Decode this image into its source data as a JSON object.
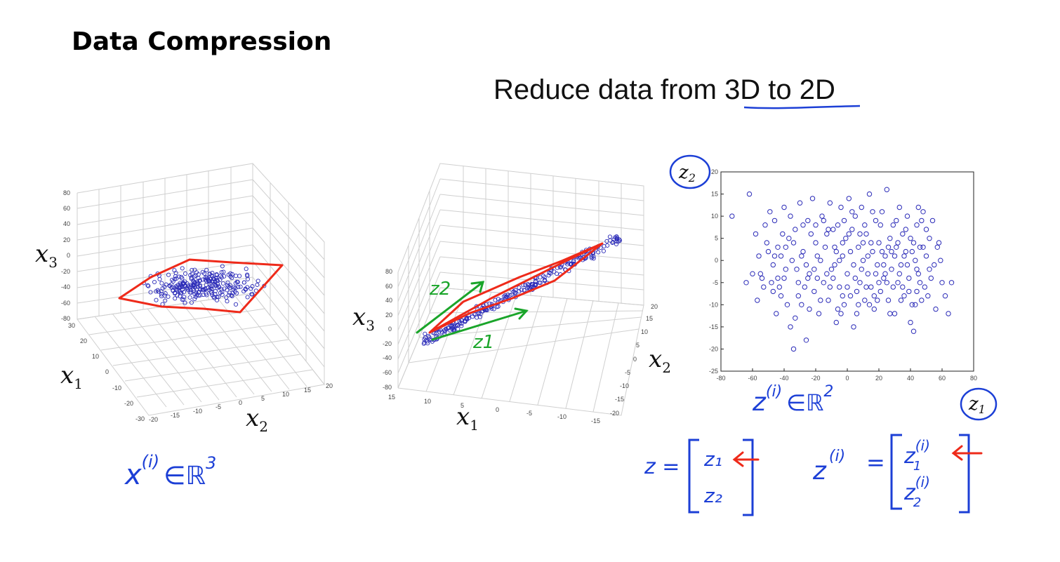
{
  "slide": {
    "title": "Data Compression",
    "subtitle_prefix": "Reduce data from ",
    "subtitle_emph": "3D to 2D"
  },
  "plot3d_left": {
    "z_ticks": [
      "80",
      "60",
      "40",
      "20",
      "0",
      "-20",
      "-40",
      "-60",
      "-80"
    ],
    "x1_ticks": [
      "30",
      "20",
      "10",
      "0",
      "-10",
      "-20",
      "-30"
    ],
    "x2_ticks": [
      "-20",
      "-15",
      "-10",
      "-5",
      "0",
      "5",
      "10",
      "15",
      "20"
    ],
    "xlabel": "x",
    "xlabel_sub": "2",
    "ylabel": "x",
    "ylabel_sub": "1",
    "zlabel": "x",
    "zlabel_sub": "3"
  },
  "plot3d_mid": {
    "z_ticks": [
      "80",
      "60",
      "40",
      "20",
      "0",
      "-20",
      "-40",
      "-60",
      "-80"
    ],
    "x1_ticks": [
      "15",
      "10",
      "5",
      "0",
      "-5",
      "-10",
      "-15"
    ],
    "x2_ticks": [
      "20",
      "15",
      "10",
      "5",
      "0",
      "-5",
      "-10",
      "-15",
      "-20"
    ],
    "xlabel": "x",
    "xlabel_sub": "1",
    "ylabel": "x",
    "ylabel_sub": "2",
    "zlabel": "x",
    "zlabel_sub": "3",
    "arrow_labels": [
      "z2",
      "z1"
    ]
  },
  "chart_data": {
    "type": "scatter",
    "title": "",
    "xlabel": "z1",
    "ylabel": "z2",
    "xlim": [
      -80,
      80
    ],
    "ylim": [
      -25,
      20
    ],
    "x_ticks": [
      "-80",
      "-60",
      "-40",
      "-20",
      "0",
      "20",
      "40",
      "60",
      "80"
    ],
    "y_ticks": [
      "20",
      "15",
      "10",
      "5",
      "0",
      "-5",
      "-10",
      "-15",
      "-20",
      "-25"
    ],
    "grid": false,
    "marker": "circle",
    "marker_color": "#2b2bb8",
    "points": [
      [
        -73,
        10
      ],
      [
        -62,
        15
      ],
      [
        -58,
        6
      ],
      [
        -55,
        -3
      ],
      [
        -52,
        8
      ],
      [
        -50,
        2
      ],
      [
        -48,
        -5
      ],
      [
        -46,
        9
      ],
      [
        -45,
        -12
      ],
      [
        -44,
        3
      ],
      [
        -42,
        -8
      ],
      [
        -40,
        12
      ],
      [
        -39,
        -2
      ],
      [
        -37,
        5
      ],
      [
        -36,
        -15
      ],
      [
        -35,
        0
      ],
      [
        -34,
        -20
      ],
      [
        -33,
        7
      ],
      [
        -31,
        -5
      ],
      [
        -30,
        13
      ],
      [
        -29,
        -10
      ],
      [
        -28,
        2
      ],
      [
        -26,
        -18
      ],
      [
        -25,
        9
      ],
      [
        -24,
        -3
      ],
      [
        -22,
        14
      ],
      [
        -21,
        -7
      ],
      [
        -20,
        4
      ],
      [
        -18,
        -12
      ],
      [
        -17,
        0
      ],
      [
        -16,
        10
      ],
      [
        -15,
        -5
      ],
      [
        -13,
        6
      ],
      [
        -12,
        -9
      ],
      [
        -11,
        13
      ],
      [
        -10,
        -2
      ],
      [
        -8,
        3
      ],
      [
        -7,
        -14
      ],
      [
        -6,
        8
      ],
      [
        -5,
        -6
      ],
      [
        -4,
        12
      ],
      [
        -3,
        1
      ],
      [
        -2,
        -10
      ],
      [
        -1,
        5
      ],
      [
        0,
        -3
      ],
      [
        1,
        14
      ],
      [
        2,
        -8
      ],
      [
        3,
        7
      ],
      [
        4,
        -1
      ],
      [
        5,
        10
      ],
      [
        6,
        -12
      ],
      [
        7,
        3
      ],
      [
        8,
        -5
      ],
      [
        9,
        12
      ],
      [
        10,
        0
      ],
      [
        11,
        -9
      ],
      [
        12,
        6
      ],
      [
        13,
        -3
      ],
      [
        14,
        15
      ],
      [
        15,
        -6
      ],
      [
        16,
        2
      ],
      [
        17,
        -11
      ],
      [
        18,
        9
      ],
      [
        19,
        -1
      ],
      [
        20,
        4
      ],
      [
        21,
        -7
      ],
      [
        22,
        11
      ],
      [
        23,
        -4
      ],
      [
        24,
        1
      ],
      [
        25,
        16
      ],
      [
        26,
        -9
      ],
      [
        27,
        5
      ],
      [
        28,
        -2
      ],
      [
        29,
        8
      ],
      [
        30,
        -12
      ],
      [
        31,
        3
      ],
      [
        32,
        -5
      ],
      [
        33,
        12
      ],
      [
        34,
        -1
      ],
      [
        35,
        6
      ],
      [
        36,
        -8
      ],
      [
        37,
        2
      ],
      [
        38,
        10
      ],
      [
        39,
        -4
      ],
      [
        40,
        5
      ],
      [
        41,
        -10
      ],
      [
        42,
        -16
      ],
      [
        43,
        0
      ],
      [
        44,
        8
      ],
      [
        45,
        -3
      ],
      [
        46,
        3
      ],
      [
        47,
        -9
      ],
      [
        48,
        11
      ],
      [
        49,
        -6
      ],
      [
        50,
        1
      ],
      [
        52,
        -2
      ],
      [
        54,
        9
      ],
      [
        56,
        -11
      ],
      [
        58,
        4
      ],
      [
        60,
        -5
      ],
      [
        62,
        -8
      ],
      [
        64,
        -12
      ],
      [
        66,
        -5
      ],
      [
        -60,
        -3
      ],
      [
        -56,
        1
      ],
      [
        -53,
        -6
      ],
      [
        -49,
        11
      ],
      [
        -47,
        -1
      ],
      [
        -43,
        -6
      ],
      [
        -41,
        6
      ],
      [
        -38,
        -10
      ],
      [
        -32,
        -2
      ],
      [
        -27,
        -6
      ],
      [
        -23,
        6
      ],
      [
        -19,
        -4
      ],
      [
        -14,
        3
      ],
      [
        -9,
        -4
      ],
      [
        -6,
        -11
      ],
      [
        -2,
        9
      ],
      [
        2,
        2
      ],
      [
        5,
        -4
      ],
      [
        8,
        6
      ],
      [
        12,
        -6
      ],
      [
        15,
        4
      ],
      [
        18,
        -3
      ],
      [
        22,
        2
      ],
      [
        26,
        3
      ],
      [
        29,
        -6
      ],
      [
        33,
        -3
      ],
      [
        37,
        7
      ],
      [
        41,
        2
      ],
      [
        44,
        -7
      ],
      [
        48,
        3
      ],
      [
        51,
        -8
      ],
      [
        55,
        -1
      ],
      [
        59,
        0
      ],
      [
        -64,
        -5
      ],
      [
        -57,
        -9
      ],
      [
        -51,
        4
      ],
      [
        -44,
        -4
      ],
      [
        -39,
        3
      ],
      [
        -33,
        -13
      ],
      [
        -28,
        8
      ],
      [
        -24,
        -11
      ],
      [
        -19,
        1
      ],
      [
        -15,
        9
      ],
      [
        -11,
        -6
      ],
      [
        -7,
        2
      ],
      [
        -3,
        -8
      ],
      [
        1,
        6
      ],
      [
        4,
        -15
      ],
      [
        9,
        -2
      ],
      [
        13,
        1
      ],
      [
        17,
        -8
      ],
      [
        21,
        8
      ],
      [
        25,
        -5
      ],
      [
        30,
        1
      ],
      [
        34,
        -9
      ],
      [
        38,
        -1
      ],
      [
        42,
        4
      ],
      [
        46,
        -5
      ],
      [
        50,
        7
      ],
      [
        -47,
        -7
      ],
      [
        -36,
        10
      ],
      [
        -26,
        -1
      ],
      [
        -17,
        -9
      ],
      [
        -8,
        -1
      ],
      [
        -3,
        4
      ],
      [
        3,
        11
      ],
      [
        11,
        8
      ],
      [
        19,
        -9
      ],
      [
        27,
        -12
      ],
      [
        35,
        -6
      ],
      [
        43,
        -10
      ],
      [
        47,
        9
      ],
      [
        53,
        -4
      ],
      [
        57,
        3
      ],
      [
        -54,
        -4
      ],
      [
        -46,
        1
      ],
      [
        -34,
        4
      ],
      [
        -21,
        -2
      ],
      [
        -12,
        7
      ],
      [
        -4,
        -12
      ],
      [
        6,
        -7
      ],
      [
        14,
        -10
      ],
      [
        23,
        -1
      ],
      [
        31,
        9
      ],
      [
        39,
        -7
      ],
      [
        45,
        12
      ],
      [
        52,
        5
      ],
      [
        -40,
        -4
      ],
      [
        -29,
        1
      ],
      [
        -20,
        8
      ],
      [
        -9,
        7
      ],
      [
        0,
        -6
      ],
      [
        7,
        -10
      ],
      [
        16,
        11
      ],
      [
        24,
        -3
      ],
      [
        32,
        4
      ],
      [
        40,
        -14
      ],
      [
        -42,
        1
      ],
      [
        -31,
        -8
      ],
      [
        -13,
        -3
      ],
      [
        10,
        4
      ],
      [
        20,
        -5
      ],
      [
        28,
        2
      ],
      [
        36,
        1
      ],
      [
        44,
        -2
      ],
      [
        -25,
        -4
      ],
      [
        -5,
        0
      ]
    ]
  },
  "annotations": {
    "x_vec": "x",
    "x_sup": "(i)",
    "in_R3": "∈ℝ",
    "R3_exp": "3",
    "z_vec": "z",
    "z_sup": "(i)",
    "in_R2": "∈ℝ",
    "R2_exp": "2",
    "z_eq": "z =",
    "z1": "z₁",
    "z2": "z₂",
    "zi_eq": "z",
    "zi_sup": "(i)",
    "zi_eq_sign": "=",
    "z1i": "z",
    "z1i_sup": "(i)",
    "z1i_sub": "1",
    "z2i": "z",
    "z2i_sup": "(i)",
    "z2i_sub": "2",
    "circle_z2": "z",
    "circle_z2_sub": "2",
    "circle_z1": "z",
    "circle_z1_sub": "1"
  },
  "colors": {
    "ink_blue": "#1c3fd6",
    "ink_red": "#ee2a1a",
    "ink_green": "#1aa52a",
    "marker_blue": "#2b2bb8",
    "grid": "#c8c8c8"
  }
}
